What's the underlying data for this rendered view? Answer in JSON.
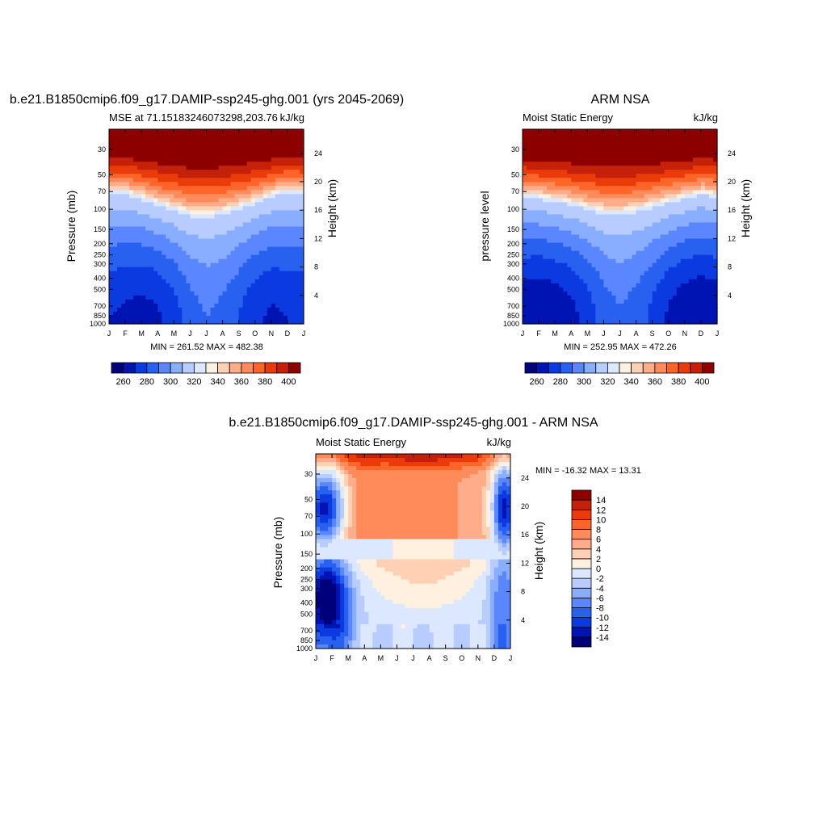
{
  "page_colors": {
    "background": "#ffffff",
    "frame": "#000000"
  },
  "chart_data": [
    {
      "type": "heatmap",
      "id": "model",
      "title": "b.e21.B1850cmip6.f09_g17.DAMIP-ssp245-ghg.001 (yrs 2045-2069)",
      "left_label": "MSE at 71.15183246073298,203.76",
      "right_label": "kJ/kg",
      "ylabel": "Pressure (mb)",
      "ylabel_right": "Height (km)",
      "x_tick_labels": [
        "J",
        "F",
        "M",
        "A",
        "M",
        "J",
        "J",
        "A",
        "S",
        "O",
        "N",
        "D",
        "J"
      ],
      "pressure_ticks": [
        30,
        50,
        70,
        100,
        150,
        200,
        250,
        300,
        400,
        500,
        700,
        850,
        1000
      ],
      "pressure_range": [
        1000,
        20
      ],
      "y_scale": "log",
      "height_ticks": [
        4,
        8,
        12,
        16,
        20,
        24
      ],
      "min_max_text": "MIN = 261.52 MAX = 482.38",
      "min": 261.52,
      "max": 482.38,
      "surface_mse": [
        270,
        268,
        266,
        268,
        275,
        285,
        290,
        287,
        280,
        272,
        268,
        270,
        270
      ],
      "tropopause_pressure": [
        70,
        70,
        78,
        88,
        97,
        108,
        110,
        105,
        95,
        85,
        75,
        68,
        70
      ],
      "colorbar": {
        "levels": [
          255,
          260,
          270,
          280,
          290,
          300,
          310,
          320,
          330,
          340,
          350,
          360,
          370,
          380,
          390,
          400,
          405
        ],
        "tick_labels": [
          "260",
          "280",
          "300",
          "320",
          "340",
          "360",
          "380",
          "400"
        ],
        "tick_values": [
          260,
          280,
          300,
          320,
          340,
          360,
          380,
          400
        ],
        "colors": [
          "#00007a",
          "#0014b4",
          "#0a3ae0",
          "#2860f0",
          "#5a86ff",
          "#8aaeff",
          "#b8ccff",
          "#dce8ff",
          "#fff0e0",
          "#ffd0b4",
          "#ffac8a",
          "#ff8a5a",
          "#ff6428",
          "#ea3c0a",
          "#c4200a",
          "#8c0000"
        ]
      }
    },
    {
      "type": "heatmap",
      "id": "obs",
      "title": "ARM NSA",
      "left_label": "Moist Static Energy",
      "right_label": "kJ/kg",
      "ylabel": "pressure level",
      "ylabel_right": "Height (km)",
      "x_tick_labels": [
        "J",
        "F",
        "M",
        "A",
        "M",
        "J",
        "J",
        "A",
        "S",
        "O",
        "N",
        "D",
        "J"
      ],
      "pressure_ticks": [
        30,
        50,
        70,
        100,
        150,
        200,
        250,
        300,
        400,
        500,
        700,
        850,
        1000
      ],
      "pressure_range": [
        1000,
        20
      ],
      "y_scale": "log",
      "height_ticks": [
        4,
        8,
        12,
        16,
        20,
        24
      ],
      "min_max_text": "MIN = 252.95 MAX = 472.26",
      "min": 252.95,
      "max": 472.26,
      "surface_mse": [
        262,
        260,
        262,
        266,
        274,
        284,
        289,
        285,
        277,
        268,
        262,
        260,
        262
      ],
      "tropopause_pressure": [
        75,
        78,
        82,
        88,
        96,
        104,
        106,
        100,
        92,
        84,
        78,
        72,
        75
      ],
      "colorbar": {
        "levels": [
          255,
          260,
          270,
          280,
          290,
          300,
          310,
          320,
          330,
          340,
          350,
          360,
          370,
          380,
          390,
          400,
          405
        ],
        "tick_labels": [
          "260",
          "280",
          "300",
          "320",
          "340",
          "360",
          "380",
          "400"
        ],
        "tick_values": [
          260,
          280,
          300,
          320,
          340,
          360,
          380,
          400
        ],
        "colors": [
          "#00007a",
          "#0014b4",
          "#0a3ae0",
          "#2860f0",
          "#5a86ff",
          "#8aaeff",
          "#b8ccff",
          "#dce8ff",
          "#fff0e0",
          "#ffd0b4",
          "#ffac8a",
          "#ff8a5a",
          "#ff6428",
          "#ea3c0a",
          "#c4200a",
          "#8c0000"
        ]
      }
    },
    {
      "type": "heatmap",
      "id": "diff",
      "title": "b.e21.B1850cmip6.f09_g17.DAMIP-ssp245-ghg.001 - ARM NSA",
      "left_label": "Moist Static Energy",
      "right_label": "kJ/kg",
      "ylabel": "Pressure (mb)",
      "ylabel_right": "Height (km)",
      "x_tick_labels": [
        "J",
        "F",
        "M",
        "A",
        "M",
        "J",
        "J",
        "A",
        "S",
        "O",
        "N",
        "D",
        "J"
      ],
      "pressure_ticks": [
        30,
        50,
        70,
        100,
        150,
        200,
        250,
        300,
        400,
        500,
        700,
        850,
        1000
      ],
      "pressure_range": [
        1000,
        20
      ],
      "y_scale": "log",
      "height_ticks": [
        4,
        8,
        12,
        16,
        20,
        24
      ],
      "min_max_text": "MIN = -16.32 MAX =  13.31",
      "min": -16.32,
      "max": 13.31,
      "colorbar": {
        "levels": [
          -16,
          -14,
          -12,
          -10,
          -8,
          -6,
          -4,
          -2,
          0,
          2,
          4,
          6,
          8,
          10,
          12,
          14,
          16
        ],
        "tick_labels": [
          "14",
          "12",
          "10",
          "8",
          "6",
          "4",
          "2",
          "0",
          "-2",
          "-4",
          "-6",
          "-8",
          "-10",
          "-12",
          "-14"
        ],
        "tick_values": [
          14,
          12,
          10,
          8,
          6,
          4,
          2,
          0,
          -2,
          -4,
          -6,
          -8,
          -10,
          -12,
          -14
        ],
        "colors": [
          "#00007a",
          "#0014b4",
          "#0a3ae0",
          "#2860f0",
          "#5a86ff",
          "#8aaeff",
          "#b8ccff",
          "#dce8ff",
          "#fff0e0",
          "#ffd0b4",
          "#ffac8a",
          "#ff8a5a",
          "#ff6428",
          "#ea3c0a",
          "#c4200a",
          "#8c0000"
        ]
      }
    }
  ]
}
